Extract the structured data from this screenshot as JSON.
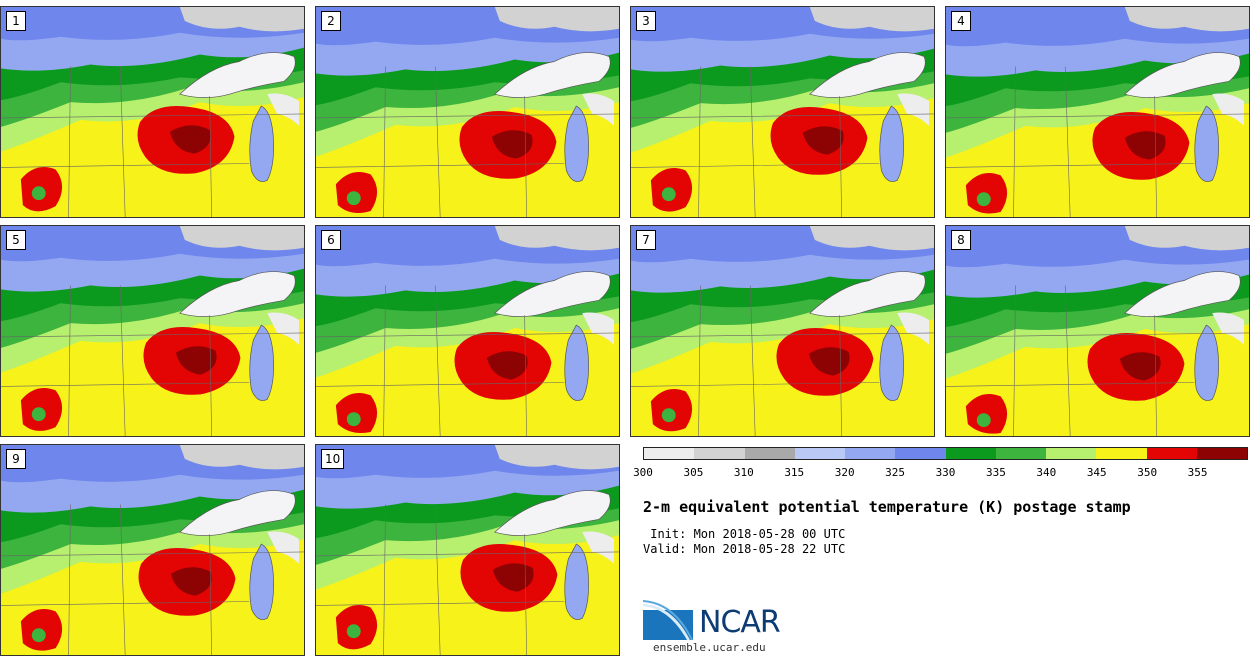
{
  "panels": [
    {
      "label": "1"
    },
    {
      "label": "2"
    },
    {
      "label": "3"
    },
    {
      "label": "4"
    },
    {
      "label": "5"
    },
    {
      "label": "6"
    },
    {
      "label": "7"
    },
    {
      "label": "8"
    },
    {
      "label": "9"
    },
    {
      "label": "10"
    }
  ],
  "colorbar": {
    "ticks": [
      "300",
      "305",
      "310",
      "315",
      "320",
      "325",
      "330",
      "335",
      "340",
      "345",
      "350",
      "355"
    ],
    "colors": [
      "#ededed",
      "#d2d2d2",
      "#a9a9a9",
      "#bac8f6",
      "#94a8f2",
      "#6f86ec",
      "#0b9a1e",
      "#3db43d",
      "#b7ef6e",
      "#f6f21a",
      "#e30404",
      "#8d0202"
    ]
  },
  "title": "2-m equivalent potential temperature (K) postage stamp",
  "init_text": " Init: Mon 2018-05-28 00 UTC",
  "valid_text": "Valid: Mon 2018-05-28 22 UTC",
  "logo": {
    "text": "NCAR"
  },
  "url": "ensemble.ucar.edu"
}
